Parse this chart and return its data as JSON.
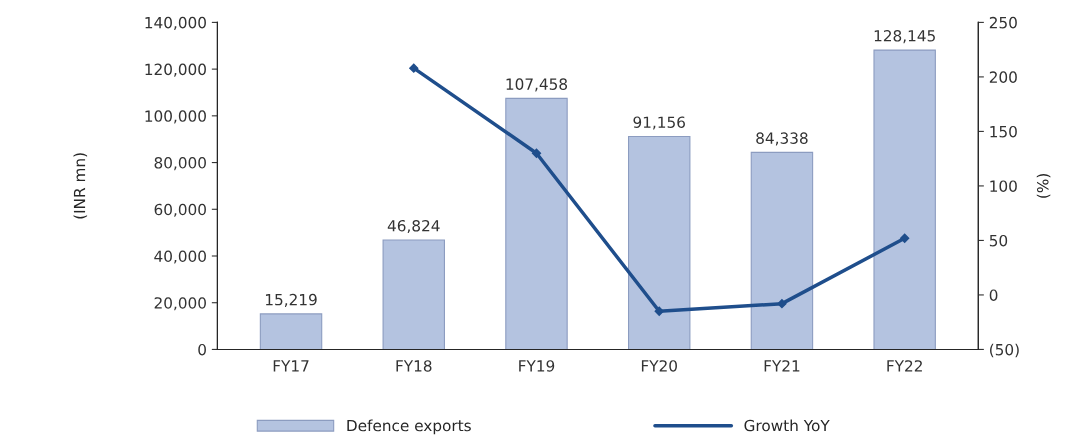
{
  "chart_data": {
    "type": "bar",
    "categories": [
      "FY17",
      "FY18",
      "FY19",
      "FY20",
      "FY21",
      "FY22"
    ],
    "series": [
      {
        "name": "Defence exports",
        "color": "#b4c3e0",
        "values": [
          15219,
          46824,
          107458,
          91156,
          84338,
          128145
        ],
        "value_labels": [
          "15,219",
          "46,824",
          "107,458",
          "91,156",
          "84,338",
          "128,145"
        ]
      },
      {
        "name": "Growth YoY",
        "type": "line",
        "axis": "y2",
        "color": "#1f4e8c",
        "marker": "diamond",
        "values": [
          null,
          208,
          130,
          -15,
          -8,
          52
        ]
      }
    ],
    "ylabel": "(INR mn)",
    "y2label": "(%)",
    "ylim": [
      0,
      140000
    ],
    "yticks": [
      {
        "value": 0,
        "label": "0"
      },
      {
        "value": 20000,
        "label": "20,000"
      },
      {
        "value": 40000,
        "label": "40,000"
      },
      {
        "value": 60000,
        "label": "60,000"
      },
      {
        "value": 80000,
        "label": "80,000"
      },
      {
        "value": 100000,
        "label": "100,000"
      },
      {
        "value": 120000,
        "label": "120,000"
      },
      {
        "value": 140000,
        "label": "140,000"
      }
    ],
    "y2lim": [
      -50,
      250
    ],
    "y2ticks": [
      {
        "value": -50,
        "label": "(50)"
      },
      0,
      50,
      100,
      150,
      200,
      250
    ],
    "grid": false,
    "legend": "bottom"
  }
}
